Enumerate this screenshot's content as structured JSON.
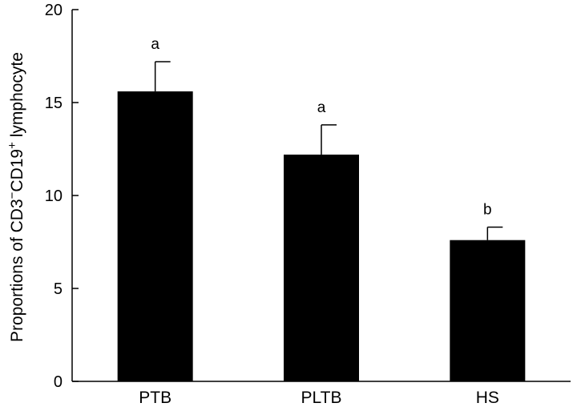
{
  "chart_data": {
    "type": "bar",
    "categories": [
      "PTB",
      "PLTB",
      "HS"
    ],
    "values": [
      15.6,
      12.2,
      7.6
    ],
    "error_plus": [
      1.6,
      1.6,
      0.7
    ],
    "significance": [
      "a",
      "a",
      "b"
    ],
    "ylabel_parts": [
      "Proportions of CD3",
      "−",
      "CD19",
      "+",
      " lymphocyte"
    ],
    "ylim": [
      0,
      20
    ],
    "yticks": [
      "0",
      "5",
      "10",
      "15",
      "20"
    ],
    "bar_color": "#000000",
    "grid": false
  }
}
